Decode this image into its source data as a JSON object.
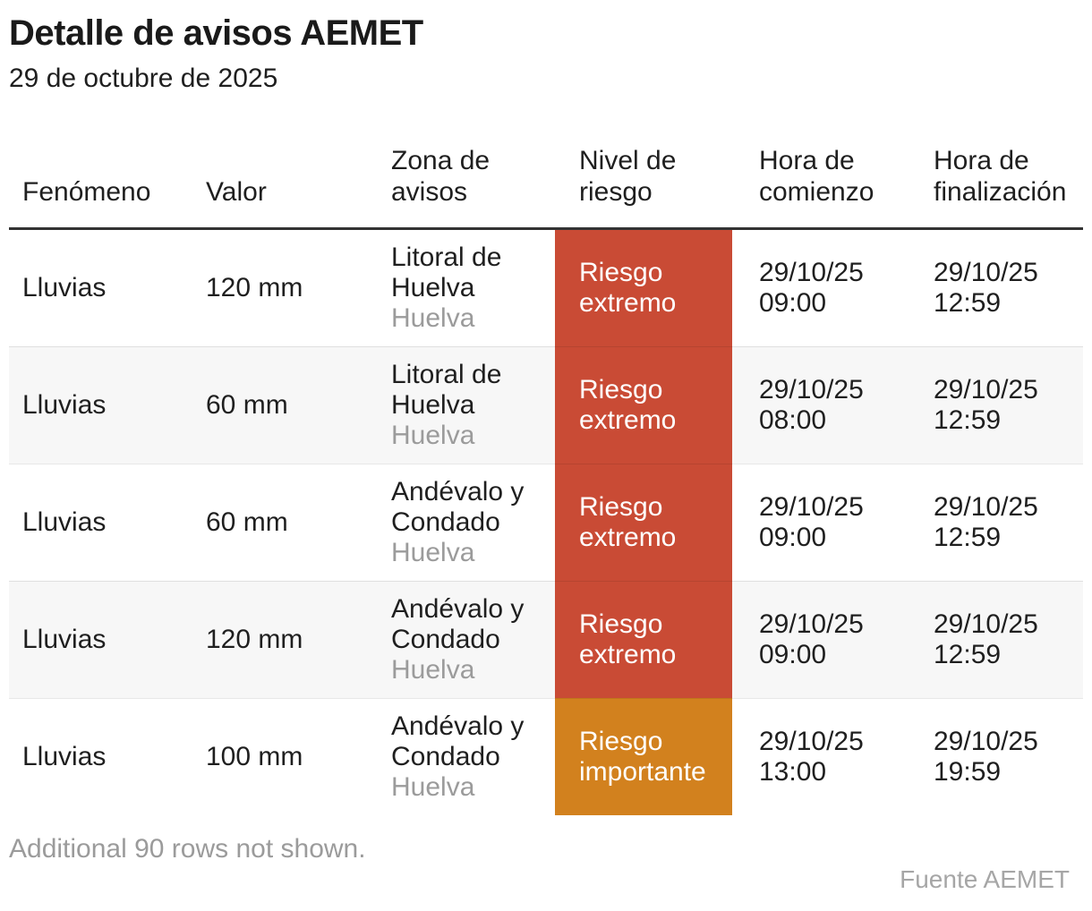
{
  "page": {
    "title": "Detalle de avisos AEMET",
    "subtitle": "29 de octubre de 2025",
    "note": "Additional 90 rows not shown.",
    "source": "Fuente AEMET"
  },
  "colors": {
    "risk_extreme": "#c94b35",
    "risk_important": "#d2811e",
    "header_rule": "#333333",
    "row_stripe": "#f7f7f7",
    "muted_text": "#9b9b9b"
  },
  "chart_data": {
    "type": "table",
    "title": "Detalle de avisos AEMET",
    "subtitle": "29 de octubre de 2025",
    "columns": [
      "Fenómeno",
      "Valor",
      "Zona de avisos",
      "Nivel de riesgo",
      "Hora de comienzo",
      "Hora de finalización"
    ],
    "rows": [
      {
        "fenomeno": "Lluvias",
        "valor": "120 mm",
        "zona": "Litoral de Huelva",
        "provincia": "Huelva",
        "nivel": "Riesgo extremo",
        "nivel_color": "#c94b35",
        "comienzo": "29/10/25 09:00",
        "finalizacion": "29/10/25 12:59"
      },
      {
        "fenomeno": "Lluvias",
        "valor": "60 mm",
        "zona": "Litoral de Huelva",
        "provincia": "Huelva",
        "nivel": "Riesgo extremo",
        "nivel_color": "#c94b35",
        "comienzo": "29/10/25 08:00",
        "finalizacion": "29/10/25 12:59"
      },
      {
        "fenomeno": "Lluvias",
        "valor": "60 mm",
        "zona": "Andévalo y Condado",
        "provincia": "Huelva",
        "nivel": "Riesgo extremo",
        "nivel_color": "#c94b35",
        "comienzo": "29/10/25 09:00",
        "finalizacion": "29/10/25 12:59"
      },
      {
        "fenomeno": "Lluvias",
        "valor": "120 mm",
        "zona": "Andévalo y Condado",
        "provincia": "Huelva",
        "nivel": "Riesgo extremo",
        "nivel_color": "#c94b35",
        "comienzo": "29/10/25 09:00",
        "finalizacion": "29/10/25 12:59"
      },
      {
        "fenomeno": "Lluvias",
        "valor": "100 mm",
        "zona": "Andévalo y Condado",
        "provincia": "Huelva",
        "nivel": "Riesgo importante",
        "nivel_color": "#d2811e",
        "comienzo": "29/10/25 13:00",
        "finalizacion": "29/10/25 19:59"
      }
    ],
    "note": "Additional 90 rows not shown.",
    "source": "Fuente AEMET",
    "legend_position": "none",
    "grid": "row-dividers"
  }
}
